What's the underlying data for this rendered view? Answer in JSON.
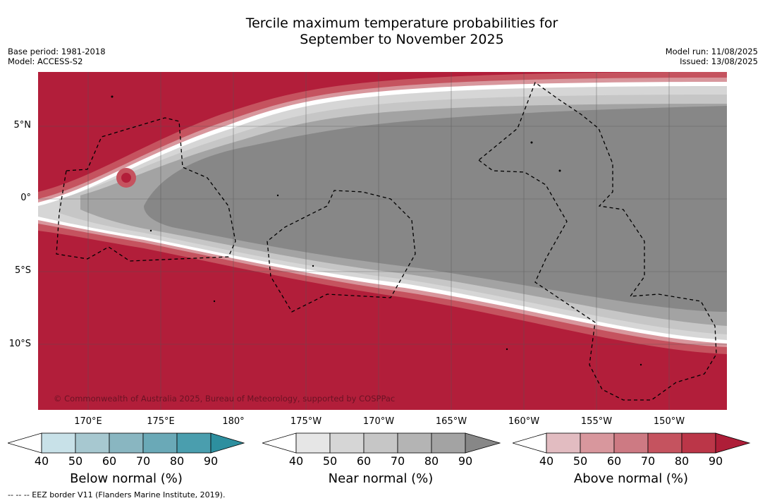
{
  "title_line1": "Tercile maximum temperature probabilities for",
  "title_line2": "September to November 2025",
  "base_period": "Base period: 1981-2018",
  "model": "Model: ACCESS-S2",
  "model_run": "Model run: 11/08/2025",
  "issued": "Issued: 13/08/2025",
  "copyright": "© Commonwealth of Australia 2025, Bureau of Meteorology, supported by COSPPac",
  "footer": "--  --  -- EEZ border V11 (Flanders Marine Institute, 2019).",
  "lat_labels": [
    "5°N",
    "0°",
    "5°S",
    "10°S"
  ],
  "lon_labels": [
    "170°E",
    "175°E",
    "180°",
    "175°W",
    "170°W",
    "165°W",
    "160°W",
    "155°W",
    "150°W"
  ],
  "colorbars": [
    {
      "label": "Below normal (%)",
      "ticks": [
        "40",
        "50",
        "60",
        "70",
        "80",
        "90"
      ],
      "colors": [
        "#ffffff",
        "#c8e1e8",
        "#a7c8d0",
        "#89b6c1",
        "#6aa9b7",
        "#4a9eae",
        "#2d8f9f"
      ]
    },
    {
      "label": "Near normal (%)",
      "ticks": [
        "40",
        "50",
        "60",
        "70",
        "80",
        "90"
      ],
      "colors": [
        "#ffffff",
        "#e6e6e6",
        "#d6d6d6",
        "#c6c6c6",
        "#b4b4b4",
        "#a3a3a3",
        "#878787"
      ]
    },
    {
      "label": "Above normal (%)",
      "ticks": [
        "40",
        "50",
        "60",
        "70",
        "80",
        "90"
      ],
      "colors": [
        "#ffffff",
        "#e2bcc1",
        "#d8979d",
        "#cd7a83",
        "#c5535f",
        "#bb3648",
        "#ae1e38"
      ]
    }
  ],
  "colors": {
    "above_normal_strong": "#b21e3a",
    "near_normal_strong": "#878787",
    "grid": "#555555",
    "eez_border": "#000000"
  }
}
